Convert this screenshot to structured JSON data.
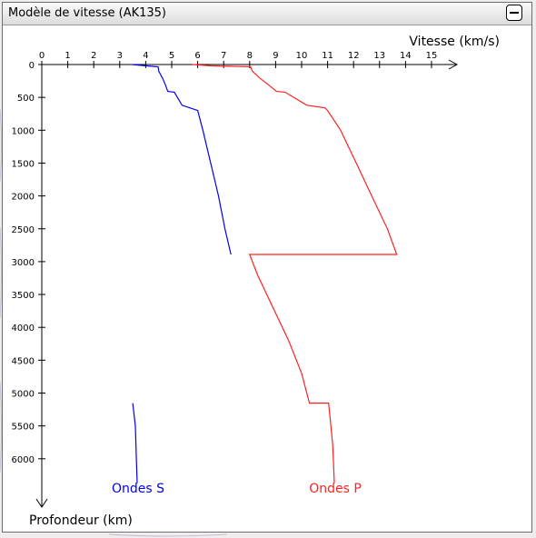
{
  "window": {
    "title": "Modèle de vitesse (AK135)"
  },
  "colors": {
    "s_wave": "#0000ee",
    "p_wave": "#ff2020",
    "axis": "#000000"
  },
  "chart_data": {
    "type": "line",
    "title": "",
    "xlabel": "Vitesse (km/s)",
    "ylabel": "Profondeur (km)",
    "x_ticks": [
      0,
      1,
      2,
      3,
      4,
      5,
      6,
      7,
      8,
      9,
      10,
      11,
      12,
      13,
      14,
      15
    ],
    "y_ticks": [
      0,
      500,
      1000,
      1500,
      2000,
      2500,
      3000,
      3500,
      4000,
      4500,
      5000,
      5500,
      6000
    ],
    "xlim": [
      0,
      16
    ],
    "ylim": [
      0,
      6371
    ],
    "legend_placement": "bottom",
    "series": [
      {
        "name": "Ondes S",
        "points": [
          [
            3.46,
            0
          ],
          [
            4.0,
            20
          ],
          [
            4.48,
            35
          ],
          [
            4.5,
            100
          ],
          [
            4.65,
            210
          ],
          [
            4.75,
            300
          ],
          [
            4.85,
            410
          ],
          [
            5.1,
            420
          ],
          [
            5.4,
            620
          ],
          [
            5.7,
            660
          ],
          [
            6.0,
            700
          ],
          [
            6.2,
            1000
          ],
          [
            6.5,
            1500
          ],
          [
            6.8,
            2000
          ],
          [
            7.05,
            2500
          ],
          [
            7.28,
            2891
          ],
          [
            null,
            null
          ],
          [
            3.5,
            5153
          ],
          [
            3.6,
            5500
          ],
          [
            3.64,
            6000
          ],
          [
            3.67,
            6371
          ]
        ]
      },
      {
        "name": "Ondes P",
        "points": [
          [
            5.8,
            0
          ],
          [
            6.5,
            20
          ],
          [
            8.04,
            35
          ],
          [
            8.1,
            100
          ],
          [
            8.4,
            210
          ],
          [
            8.7,
            300
          ],
          [
            9.03,
            410
          ],
          [
            9.36,
            420
          ],
          [
            10.2,
            620
          ],
          [
            10.9,
            660
          ],
          [
            11.0,
            700
          ],
          [
            11.5,
            1000
          ],
          [
            12.1,
            1500
          ],
          [
            12.7,
            2000
          ],
          [
            13.3,
            2500
          ],
          [
            13.66,
            2891
          ],
          [
            8.0,
            2891
          ],
          [
            8.3,
            3200
          ],
          [
            8.9,
            3700
          ],
          [
            9.5,
            4200
          ],
          [
            10.0,
            4700
          ],
          [
            10.3,
            5153
          ],
          [
            11.04,
            5153
          ],
          [
            11.1,
            5400
          ],
          [
            11.2,
            5800
          ],
          [
            11.26,
            6371
          ]
        ]
      }
    ]
  }
}
